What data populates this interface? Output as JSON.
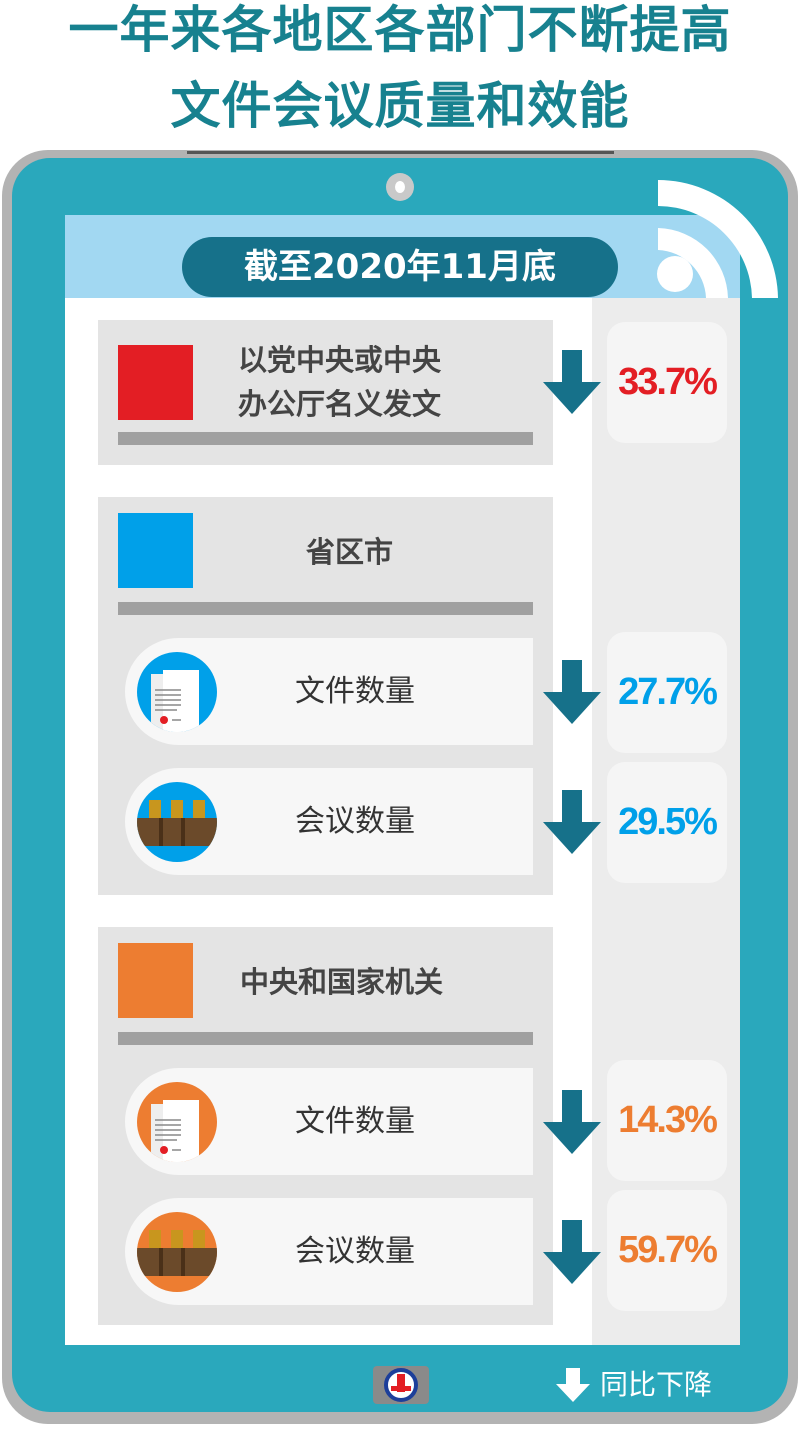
{
  "title": {
    "line1": "一年来各地区各部门不断提高",
    "line2": "文件会议质量和效能"
  },
  "date_label": "截至2020年11月底",
  "colors": {
    "teal": "#16718a",
    "red": "#e31e24",
    "blue": "#00a0e9",
    "orange": "#ed7d31"
  },
  "sections": [
    {
      "title_line1": "以党中央或中央",
      "title_line2": "办公厅名义发文",
      "color": "#e31e24",
      "value": "33.7%"
    },
    {
      "title": "省区市",
      "color": "#00a0e9",
      "rows": [
        {
          "label": "文件数量",
          "icon": "document-icon",
          "value": "27.7%"
        },
        {
          "label": "会议数量",
          "icon": "meeting-chairs-icon",
          "value": "29.5%"
        }
      ]
    },
    {
      "title": "中央和国家机关",
      "color": "#ed7d31",
      "rows": [
        {
          "label": "文件数量",
          "icon": "document-icon",
          "value": "14.3%"
        },
        {
          "label": "会议数量",
          "icon": "meeting-chairs-icon",
          "value": "59.7%"
        }
      ]
    }
  ],
  "legend": {
    "icon": "down-arrow-icon",
    "label": "同比下降"
  },
  "logo": "XINHUA"
}
